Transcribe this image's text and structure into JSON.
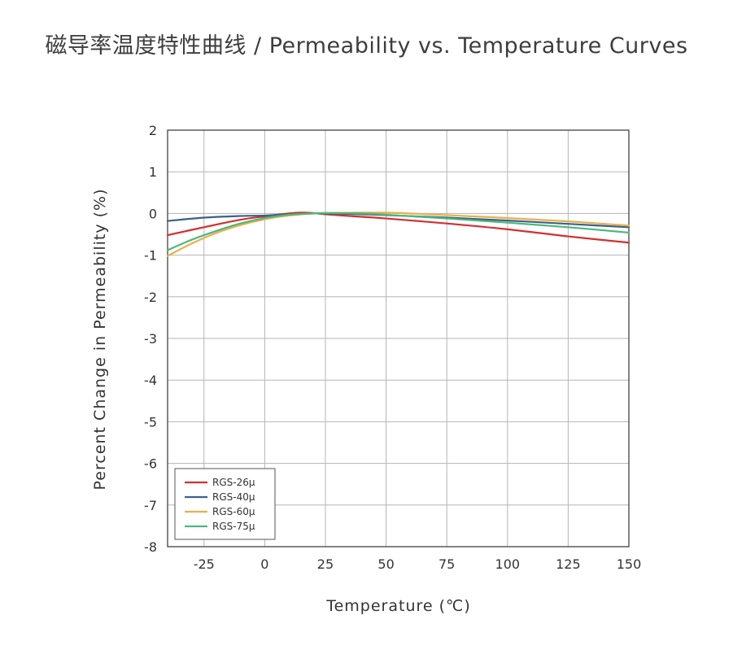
{
  "chart_data": {
    "type": "line",
    "title": "磁导率温度特性曲线 / Permeability vs. Temperature Curves",
    "xlabel": "Temperature (℃)",
    "ylabel": "Percent Change in Permeability (%)",
    "xlim": [
      -40,
      150
    ],
    "ylim": [
      -8,
      2
    ],
    "xticks": [
      -25,
      0,
      25,
      50,
      75,
      100,
      125,
      150
    ],
    "xtick_labels": [
      "-25",
      "0",
      "25",
      "50",
      "75",
      "100",
      "125",
      "150"
    ],
    "yticks": [
      2,
      1,
      0,
      -1,
      -2,
      -3,
      -4,
      -5,
      -6,
      -7,
      -8
    ],
    "ytick_labels": [
      "2",
      "1",
      "0",
      "-1",
      "-2",
      "-3",
      "-4",
      "-5",
      "-6",
      "-7",
      "-8"
    ],
    "grid": true,
    "legend_position": "bottom-left",
    "series": [
      {
        "name": "RGS-26μ",
        "color": "#d32f2f",
        "x": [
          -40,
          -25,
          -10,
          0,
          10,
          15,
          20,
          25,
          40,
          50,
          75,
          100,
          125,
          150
        ],
        "y": [
          -0.52,
          -0.33,
          -0.15,
          -0.07,
          0.0,
          0.02,
          0.01,
          -0.02,
          -0.08,
          -0.12,
          -0.24,
          -0.38,
          -0.55,
          -0.7
        ]
      },
      {
        "name": "RGS-40μ",
        "color": "#3b6186",
        "x": [
          -40,
          -25,
          -10,
          0,
          10,
          20,
          25,
          40,
          50,
          75,
          100,
          125,
          150
        ],
        "y": [
          -0.18,
          -0.1,
          -0.06,
          -0.05,
          -0.02,
          0.0,
          0.0,
          -0.02,
          -0.04,
          -0.1,
          -0.17,
          -0.25,
          -0.33
        ]
      },
      {
        "name": "RGS-60μ",
        "color": "#e8b04c",
        "x": [
          -40,
          -30,
          -20,
          -10,
          0,
          10,
          20,
          25,
          40,
          50,
          60,
          75,
          100,
          125,
          150
        ],
        "y": [
          -1.02,
          -0.72,
          -0.47,
          -0.28,
          -0.14,
          -0.05,
          0.0,
          0.01,
          0.02,
          0.02,
          0.0,
          -0.04,
          -0.11,
          -0.19,
          -0.29
        ]
      },
      {
        "name": "RGS-75μ",
        "color": "#4cb87a",
        "x": [
          -40,
          -30,
          -20,
          -10,
          0,
          10,
          20,
          25,
          40,
          50,
          75,
          100,
          125,
          150
        ],
        "y": [
          -0.88,
          -0.63,
          -0.42,
          -0.24,
          -0.11,
          -0.03,
          0.0,
          0.01,
          0.0,
          -0.03,
          -0.12,
          -0.22,
          -0.33,
          -0.46
        ]
      }
    ]
  }
}
